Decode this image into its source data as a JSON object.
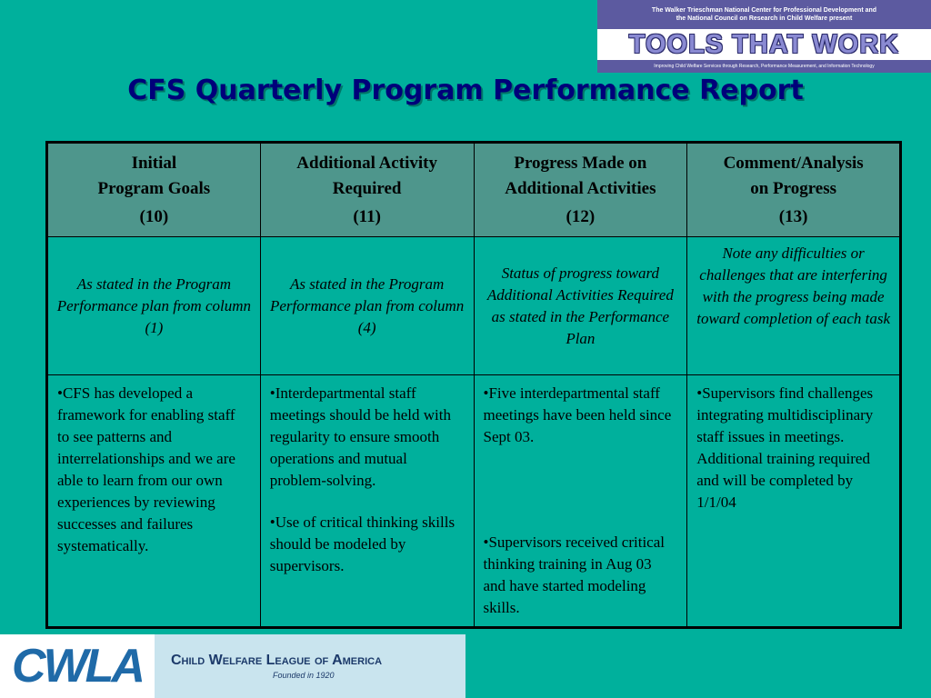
{
  "banner": {
    "top_line1": "The Walker Trieschman National Center for Professional Development and",
    "top_line2": "the National Council on Research in Child Welfare present",
    "headline": "TOOLS THAT WORK",
    "tagline": "Improving Child Welfare Services through Research, Performance Measurement, and Information Technology"
  },
  "title": "CFS Quarterly Program Performance Report",
  "table": {
    "headers": [
      {
        "lines": [
          "Initial",
          "Program Goals"
        ],
        "number": "(10)"
      },
      {
        "lines": [
          "Additional Activity",
          "Required"
        ],
        "number": "(11)"
      },
      {
        "lines": [
          "Progress Made on",
          "Additional Activities"
        ],
        "number": "(12)"
      },
      {
        "lines": [
          "Comment/Analysis",
          "on Progress"
        ],
        "number": "(13)"
      }
    ],
    "descriptions": [
      "As stated in the Program Performance plan from column (1)",
      "As stated in the Program Performance plan from column (4)",
      "Status of progress toward Additional Activities Required as stated in the Performance Plan",
      "Note any difficulties or challenges that are interfering with the progress being made toward completion of each task"
    ],
    "rows": [
      [
        "•CFS has developed a framework for enabling staff to see patterns and interrelationships and we are able to learn from our own experiences by reviewing successes and failures systematically."
      ],
      [
        "•Interdepartmental staff meetings should be held with regularity to ensure smooth operations and mutual problem-solving.",
        "•Use of critical thinking skills should be modeled by supervisors."
      ],
      [
        "•Five interdepartmental staff meetings have been held since Sept 03.",
        "•Supervisors received critical thinking training in Aug 03 and have started modeling skills."
      ],
      [
        "•Supervisors find challenges integrating multidisciplinary staff issues in meetings. Additional training required and will be completed by 1/1/04"
      ]
    ]
  },
  "logo": {
    "mark": "CWLA",
    "name": "Child Welfare League of America",
    "founded": "Founded in 1920"
  },
  "colors": {
    "background": "#00b09c",
    "header_fill": "#4e968c",
    "title": "#00007a",
    "banner_purple": "#5c5aa0"
  }
}
